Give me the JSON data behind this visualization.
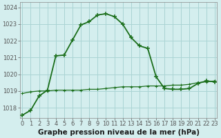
{
  "title": "Graphe pression niveau de la mer (hPa)",
  "background_color": "#d4eeee",
  "grid_color": "#aad4d4",
  "line_color": "#1a6e1a",
  "series1": {
    "x": [
      0,
      1,
      2,
      3,
      4,
      5,
      6,
      7,
      8,
      9,
      10,
      11,
      12,
      13,
      14,
      15,
      16,
      17,
      18,
      19,
      20,
      21,
      22,
      23
    ],
    "y": [
      1017.55,
      1017.85,
      1018.7,
      1019.05,
      1021.1,
      1021.15,
      1022.05,
      1022.95,
      1023.15,
      1023.55,
      1023.62,
      1023.45,
      1023.0,
      1022.2,
      1021.7,
      1021.55,
      1019.85,
      1019.15,
      1019.1,
      1019.1,
      1019.15,
      1019.45,
      1019.6,
      1019.55
    ]
  },
  "series2": {
    "x": [
      0,
      1,
      2,
      3,
      4,
      5,
      6,
      7,
      8,
      9,
      10,
      11,
      12,
      13,
      14,
      15,
      16,
      17,
      18,
      19,
      20,
      21,
      22,
      23
    ],
    "y": [
      1018.85,
      1018.95,
      1019.0,
      1019.0,
      1019.05,
      1019.05,
      1019.05,
      1019.05,
      1019.1,
      1019.1,
      1019.15,
      1019.2,
      1019.25,
      1019.25,
      1019.25,
      1019.3,
      1019.3,
      1019.3,
      1019.35,
      1019.35,
      1019.4,
      1019.5,
      1019.55,
      1019.6
    ]
  },
  "ylim": [
    1017.4,
    1024.3
  ],
  "yticks": [
    1018,
    1019,
    1020,
    1021,
    1022,
    1023,
    1024
  ],
  "xlim": [
    -0.3,
    23.3
  ],
  "xticks": [
    0,
    1,
    2,
    3,
    4,
    5,
    6,
    7,
    8,
    9,
    10,
    11,
    12,
    13,
    14,
    15,
    16,
    17,
    18,
    19,
    20,
    21,
    22,
    23
  ],
  "title_fontsize": 7.5,
  "tick_fontsize": 6.0,
  "axis_bg": "#d4eeee"
}
